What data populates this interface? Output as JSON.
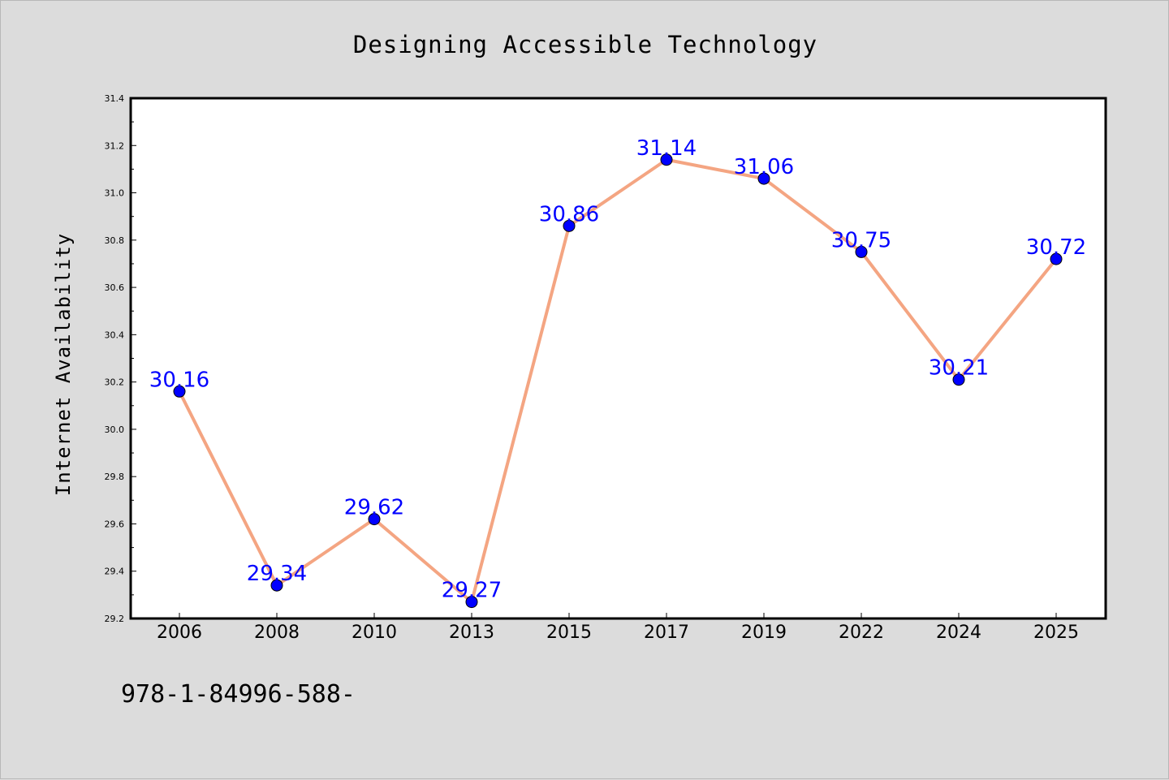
{
  "chart_data": {
    "type": "line",
    "title": "Designing Accessible Technology",
    "xlabel": "",
    "ylabel": "Internet Availability",
    "categories": [
      "2006",
      "2008",
      "2010",
      "2013",
      "2015",
      "2017",
      "2019",
      "2022",
      "2024",
      "2025"
    ],
    "values": [
      30.16,
      29.34,
      29.62,
      29.27,
      30.86,
      31.14,
      31.06,
      30.75,
      30.21,
      30.72
    ],
    "data_labels": [
      "30.16",
      "29.34",
      "29.62",
      "29.27",
      "30.86",
      "31.14",
      "31.06",
      "30.75",
      "30.21",
      "30.72"
    ],
    "ylim": [
      29.2,
      31.4
    ],
    "yticks": [
      "29.2",
      "29.4",
      "29.6",
      "29.8",
      "30.0",
      "30.2",
      "30.4",
      "30.6",
      "30.8",
      "31.0",
      "31.2",
      "31.4"
    ],
    "grid": false,
    "line_color": "#f4a582",
    "marker_color": "#0000ff",
    "label_color": "#0000ff"
  },
  "footer_text": "978-1-84996-588-"
}
